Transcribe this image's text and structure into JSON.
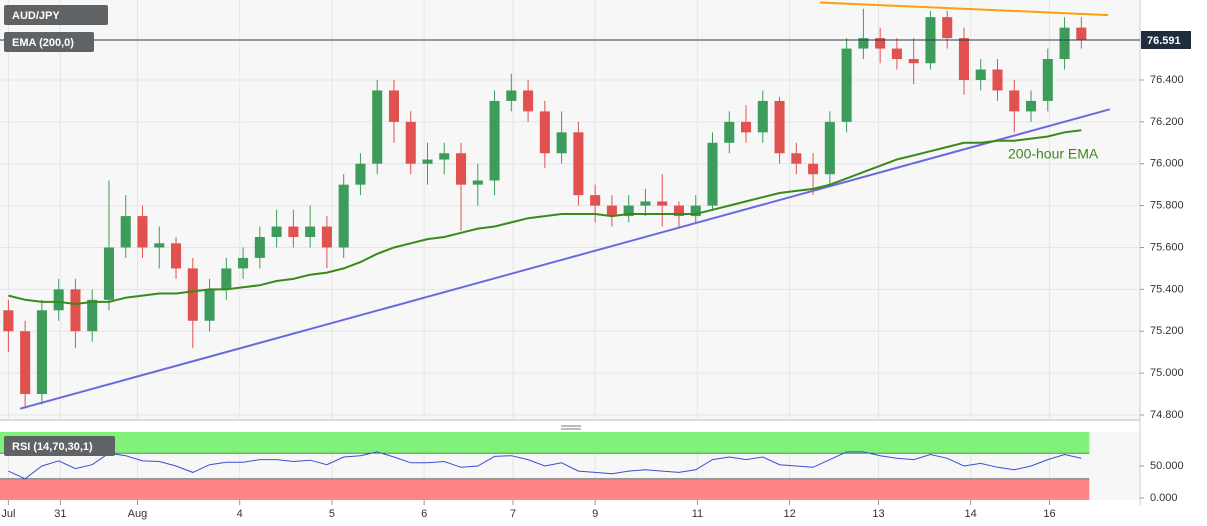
{
  "chart_data": [
    {
      "type": "candlestick",
      "x": [
        0.5,
        1.5,
        2.5,
        3.5,
        4.5,
        5.5,
        6.5,
        7.5,
        8.5,
        9.5,
        10.5,
        11.5,
        12.5,
        13.5,
        14.5,
        15.5,
        16.5,
        17.5,
        18.5,
        19.5,
        20.5,
        21.5,
        22.5,
        23.5,
        24.5,
        25.5,
        26.5,
        27.5,
        28.5,
        29.5,
        30.5,
        31.5,
        32.5,
        33.5,
        34.5,
        35.5,
        36.5,
        37.5,
        38.5,
        39.5,
        40.5,
        41.5,
        42.5,
        43.5,
        44.5,
        45.5,
        46.5,
        47.5,
        48.5,
        49.5,
        50.5,
        51.5,
        52.5,
        53.5,
        54.5,
        55.5,
        56.5,
        57.5,
        58.5,
        59.5,
        60.5,
        61.5,
        62.5,
        63.5,
        64.5
      ],
      "xlim": [
        0,
        68
      ],
      "xticks": [
        {
          "value": 0.5,
          "label": "Jul"
        },
        {
          "value": 3.6,
          "label": "31"
        },
        {
          "value": 8.2,
          "label": "Aug"
        },
        {
          "value": 14.3,
          "label": "4"
        },
        {
          "value": 19.8,
          "label": "5"
        },
        {
          "value": 25.3,
          "label": "6"
        },
        {
          "value": 30.6,
          "label": "7"
        },
        {
          "value": 35.5,
          "label": "9"
        },
        {
          "value": 41.6,
          "label": "11"
        },
        {
          "value": 47.1,
          "label": "12"
        },
        {
          "value": 52.4,
          "label": "13"
        },
        {
          "value": 57.9,
          "label": "14"
        },
        {
          "value": 62.6,
          "label": "16"
        }
      ],
      "ylim": [
        74.776,
        76.782
      ],
      "yticks": [
        {
          "value": 74.8,
          "label": "74.800"
        },
        {
          "value": 75.0,
          "label": "75.000"
        },
        {
          "value": 75.2,
          "label": "75.200"
        },
        {
          "value": 75.4,
          "label": "75.400"
        },
        {
          "value": 75.6,
          "label": "75.600"
        },
        {
          "value": 75.8,
          "label": "75.800"
        },
        {
          "value": 76.0,
          "label": "76.000"
        },
        {
          "value": 76.2,
          "label": "76.200"
        },
        {
          "value": 76.4,
          "label": "76.400"
        }
      ],
      "grid": true,
      "last_price": 76.591,
      "series": [
        {
          "name": "AUD/JPY",
          "up_color": "#3d9c5c",
          "down_color": "#e0524f",
          "open": [
            75.3,
            75.2,
            74.9,
            75.3,
            75.4,
            75.2,
            75.35,
            75.6,
            75.75,
            75.6,
            75.62,
            75.5,
            75.25,
            75.4,
            75.5,
            75.55,
            75.65,
            75.7,
            75.65,
            75.7,
            75.6,
            75.9,
            76.0,
            76.35,
            76.2,
            76.0,
            76.02,
            76.05,
            75.9,
            75.92,
            76.3,
            76.35,
            76.25,
            76.05,
            76.15,
            75.85,
            75.8,
            75.75,
            75.8,
            75.82,
            75.8,
            75.75,
            75.8,
            76.1,
            76.2,
            76.15,
            76.3,
            76.05,
            76.0,
            75.95,
            76.2,
            76.55,
            76.6,
            76.55,
            76.5,
            76.48,
            76.7,
            76.6,
            76.4,
            76.45,
            76.35,
            76.25,
            76.3,
            76.5,
            76.65
          ],
          "high": [
            75.35,
            75.25,
            75.35,
            75.45,
            75.45,
            75.4,
            75.92,
            75.85,
            75.8,
            75.7,
            75.65,
            75.55,
            75.45,
            75.55,
            75.6,
            75.7,
            75.78,
            75.78,
            75.8,
            75.75,
            75.95,
            76.05,
            76.4,
            76.4,
            76.25,
            76.1,
            76.1,
            76.1,
            76.0,
            76.35,
            76.43,
            76.4,
            76.3,
            76.25,
            76.2,
            75.9,
            75.85,
            75.85,
            75.88,
            75.95,
            75.82,
            75.85,
            76.15,
            76.25,
            76.28,
            76.35,
            76.32,
            76.1,
            76.05,
            76.25,
            76.6,
            76.74,
            76.65,
            76.6,
            76.6,
            76.73,
            76.73,
            76.65,
            76.5,
            76.5,
            76.4,
            76.35,
            76.55,
            76.7,
            76.7
          ],
          "low": [
            75.1,
            74.83,
            74.85,
            75.25,
            75.12,
            75.15,
            75.3,
            75.55,
            75.55,
            75.5,
            75.45,
            75.12,
            75.2,
            75.35,
            75.45,
            75.5,
            75.6,
            75.6,
            75.6,
            75.5,
            75.55,
            75.85,
            75.95,
            76.1,
            75.95,
            75.9,
            75.95,
            75.68,
            75.8,
            75.85,
            76.25,
            76.2,
            75.98,
            76.0,
            75.8,
            75.72,
            75.7,
            75.72,
            75.75,
            75.7,
            75.7,
            75.72,
            75.78,
            76.05,
            76.1,
            76.1,
            76.0,
            75.95,
            75.85,
            75.9,
            76.15,
            76.5,
            76.48,
            76.45,
            76.38,
            76.45,
            76.55,
            76.33,
            76.35,
            76.3,
            76.15,
            76.2,
            76.25,
            76.45,
            76.55
          ],
          "close": [
            75.2,
            74.9,
            75.3,
            75.4,
            75.2,
            75.35,
            75.6,
            75.75,
            75.6,
            75.62,
            75.5,
            75.25,
            75.4,
            75.5,
            75.55,
            75.65,
            75.7,
            75.65,
            75.7,
            75.6,
            75.9,
            76.0,
            76.35,
            76.2,
            76.0,
            76.02,
            76.05,
            75.9,
            75.92,
            76.3,
            76.35,
            76.25,
            76.05,
            76.15,
            75.85,
            75.8,
            75.75,
            75.8,
            75.82,
            75.8,
            75.75,
            75.8,
            76.1,
            76.2,
            76.15,
            76.3,
            76.05,
            76.0,
            75.95,
            76.2,
            76.55,
            76.6,
            76.55,
            76.5,
            76.48,
            76.7,
            76.6,
            76.4,
            76.45,
            76.35,
            76.25,
            76.3,
            76.5,
            76.65,
            76.591
          ]
        },
        {
          "name": "EMA (200,0)",
          "color": "#3a8a1a",
          "values": [
            75.37,
            75.35,
            75.34,
            75.34,
            75.33,
            75.34,
            75.34,
            75.36,
            75.37,
            75.38,
            75.38,
            75.39,
            75.4,
            75.4,
            75.41,
            75.42,
            75.44,
            75.45,
            75.47,
            75.48,
            75.5,
            75.53,
            75.57,
            75.6,
            75.62,
            75.64,
            75.65,
            75.67,
            75.69,
            75.7,
            75.72,
            75.74,
            75.75,
            75.76,
            75.76,
            75.76,
            75.75,
            75.76,
            75.76,
            75.76,
            75.76,
            75.76,
            75.78,
            75.8,
            75.82,
            75.84,
            75.86,
            75.87,
            75.88,
            75.9,
            75.93,
            75.96,
            75.99,
            76.02,
            76.04,
            76.06,
            76.08,
            76.1,
            76.1,
            76.11,
            76.11,
            76.12,
            76.13,
            76.15,
            76.16
          ]
        }
      ],
      "trendlines": [
        {
          "color": "#6a6ae0",
          "x": [
            1.2,
            66.2
          ],
          "y": [
            74.83,
            76.26
          ]
        },
        {
          "color": "#ff9f0a",
          "x": [
            48.9,
            66.1
          ],
          "y": [
            76.77,
            76.71
          ]
        }
      ],
      "annotations": [
        {
          "text": "200-hour EMA",
          "color": "#3a8a1a"
        }
      ]
    },
    {
      "type": "line",
      "ylim": [
        -3,
        103
      ],
      "yticks": [
        {
          "value": 0,
          "label": "0.000"
        },
        {
          "value": 50,
          "label": "50.000"
        }
      ],
      "upper": 70,
      "upper_color": "#80f27a",
      "lower": 30,
      "lower_color": "#ff8585",
      "series": [
        {
          "name": "RSI (14,70,30,1)",
          "color": "#3b4fd1",
          "values": [
            42,
            30,
            50,
            58,
            46,
            52,
            70,
            66,
            58,
            57,
            50,
            40,
            52,
            56,
            56,
            60,
            60,
            57,
            59,
            52,
            64,
            66,
            72,
            64,
            55,
            55,
            57,
            48,
            50,
            65,
            66,
            60,
            50,
            55,
            42,
            40,
            38,
            42,
            44,
            42,
            40,
            44,
            60,
            64,
            60,
            64,
            52,
            50,
            48,
            60,
            72,
            72,
            66,
            62,
            60,
            68,
            62,
            50,
            54,
            48,
            44,
            50,
            60,
            68,
            62
          ]
        }
      ]
    }
  ]
}
